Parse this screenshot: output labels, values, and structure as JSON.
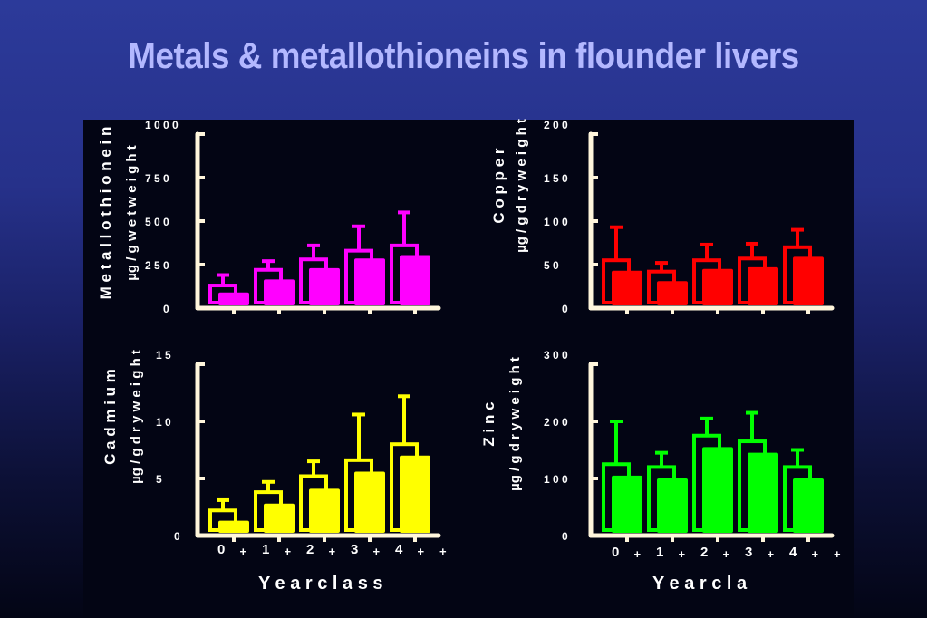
{
  "slide": {
    "title": "Metals & metallothioneins in flounder livers"
  },
  "chart_data": [
    {
      "type": "bar",
      "panel": "top-left",
      "ylabel_lines": [
        "Metallothionein",
        "µg / g wet weight"
      ],
      "ylabel_display": [
        "M e t a l l o t h i o n e i n",
        "µg / g  w e t  w e i g h t"
      ],
      "ylim": [
        0,
        1000
      ],
      "yticks": [
        0,
        250,
        500,
        750,
        1000
      ],
      "ytick_labels": [
        "0",
        "2 5 0",
        "5 0 0",
        "7 5 0",
        "1 0 0 0"
      ],
      "categories": [
        "0+",
        "1+",
        "2+",
        "3+",
        "4+"
      ],
      "series": [
        {
          "values": [
            130,
            220,
            280,
            330,
            360
          ],
          "errors": [
            60,
            50,
            80,
            140,
            190
          ],
          "style": "outline"
        },
        {
          "values": [
            90,
            165,
            230,
            285,
            305
          ],
          "style": "filled"
        }
      ],
      "color": "#ff00ff"
    },
    {
      "type": "bar",
      "panel": "top-right",
      "ylabel_lines": [
        "Copper",
        "µg / g dry weight"
      ],
      "ylabel_display": [
        "C o p p e r",
        "µg / g  d r y  w e i g h t"
      ],
      "ylim": [
        0,
        200
      ],
      "yticks": [
        0,
        50,
        100,
        150,
        200
      ],
      "ytick_labels": [
        "0",
        "5 0",
        "1 0 0",
        "1 5 0",
        "2 0 0"
      ],
      "categories": [
        "0+",
        "1+",
        "2+",
        "3+",
        "4+"
      ],
      "series": [
        {
          "values": [
            55,
            42,
            55,
            57,
            70
          ],
          "errors": [
            38,
            10,
            18,
            17,
            20
          ],
          "style": "outline"
        },
        {
          "values": [
            43,
            31,
            45,
            47,
            59
          ],
          "style": "filled"
        }
      ],
      "color": "#ff0000"
    },
    {
      "type": "bar",
      "panel": "bottom-left",
      "ylabel_lines": [
        "Cadmium",
        "µg / g dry weight"
      ],
      "ylabel_display": [
        "C a d m i u m",
        "µg / g  d r y  w e i g h t"
      ],
      "ylim": [
        0,
        15
      ],
      "yticks": [
        0,
        5,
        10,
        15
      ],
      "ytick_labels": [
        "0",
        "5",
        "1 0",
        "1 5"
      ],
      "categories": [
        "0+",
        "1+",
        "2+",
        "3+",
        "4+"
      ],
      "xlabel": "Year class",
      "xlabel_display": "Y e a r   c l a s s",
      "xtick_labels": [
        "0",
        "+",
        "1",
        "+",
        "2",
        "+",
        "3",
        "+",
        "4",
        "+",
        "+"
      ],
      "series": [
        {
          "values": [
            2.2,
            3.8,
            5.2,
            6.6,
            8.0
          ],
          "errors": [
            0.9,
            0.9,
            1.3,
            4.0,
            4.2
          ],
          "style": "outline"
        },
        {
          "values": [
            1.3,
            2.8,
            4.1,
            5.6,
            7.0
          ],
          "style": "filled"
        }
      ],
      "color": "#ffff00"
    },
    {
      "type": "bar",
      "panel": "bottom-right",
      "ylabel_lines": [
        "Zinc",
        "µg / g dry weight"
      ],
      "ylabel_display": [
        "Z i n c",
        "µg / g  d r y  w e i g h t"
      ],
      "ylim": [
        0,
        300
      ],
      "yticks": [
        0,
        100,
        200,
        300
      ],
      "ytick_labels": [
        "0",
        "1 0 0",
        "2 0 0",
        "3 0 0"
      ],
      "categories": [
        "0+",
        "1+",
        "2+",
        "3+",
        "4+"
      ],
      "xlabel": "Year class",
      "xlabel_display": "Y e a r   c l a",
      "xtick_labels": [
        "0",
        "+",
        "1",
        "+",
        "2",
        "+",
        "3",
        "+",
        "4",
        "+",
        "+"
      ],
      "series": [
        {
          "values": [
            125,
            120,
            175,
            165,
            120
          ],
          "errors": [
            75,
            25,
            30,
            50,
            30
          ],
          "style": "outline"
        },
        {
          "values": [
            105,
            100,
            155,
            145,
            100
          ],
          "style": "filled"
        }
      ],
      "color": "#00ff00"
    }
  ]
}
